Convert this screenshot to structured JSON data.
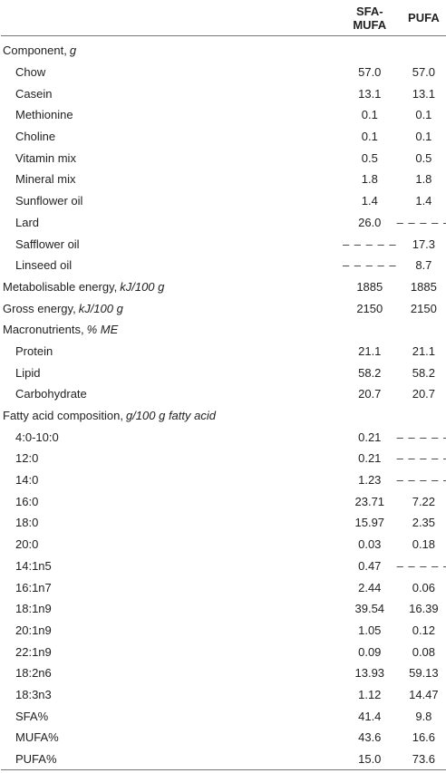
{
  "table": {
    "columns": [
      "SFA-MUFA",
      "PUFA"
    ],
    "sections": [
      {
        "label": "Component,",
        "unit": "g",
        "rows": [
          {
            "label": "Chow",
            "values": [
              "57.0",
              "57.0"
            ]
          },
          {
            "label": "Casein",
            "values": [
              "13.1",
              "13.1"
            ]
          },
          {
            "label": "Methionine",
            "values": [
              "0.1",
              "0.1"
            ]
          },
          {
            "label": "Choline",
            "values": [
              "0.1",
              "0.1"
            ]
          },
          {
            "label": "Vitamin mix",
            "values": [
              "0.5",
              "0.5"
            ]
          },
          {
            "label": "Mineral mix",
            "values": [
              "1.8",
              "1.8"
            ]
          },
          {
            "label": "Sunflower oil",
            "values": [
              "1.4",
              "1.4"
            ]
          },
          {
            "label": "Lard",
            "values": [
              "26.0",
              "– – – – –"
            ]
          },
          {
            "label": "Safflower oil",
            "values": [
              "– – – – –",
              "17.3"
            ]
          },
          {
            "label": "Linseed oil",
            "values": [
              "– – – – –",
              "8.7"
            ]
          }
        ]
      },
      {
        "label": "Metabolisable energy,",
        "unit": "kJ/100 g",
        "values": [
          "1885",
          "1885"
        ]
      },
      {
        "label": "Gross energy,",
        "unit": "kJ/100 g",
        "values": [
          "2150",
          "2150"
        ]
      },
      {
        "label": "Macronutrients,",
        "unit": "% ME",
        "rows": [
          {
            "label": "Protein",
            "values": [
              "21.1",
              "21.1"
            ]
          },
          {
            "label": "Lipid",
            "values": [
              "58.2",
              "58.2"
            ]
          },
          {
            "label": "Carbohydrate",
            "values": [
              "20.7",
              "20.7"
            ]
          }
        ]
      },
      {
        "label": "Fatty acid composition,",
        "unit": "g/100 g fatty acid",
        "rows": [
          {
            "label": "4:0-10:0",
            "values": [
              "0.21",
              "– – – – –"
            ]
          },
          {
            "label": "12:0",
            "values": [
              "0.21",
              "– – – – –"
            ]
          },
          {
            "label": "14:0",
            "values": [
              "1.23",
              "– – – – –"
            ]
          },
          {
            "label": "16:0",
            "values": [
              "23.71",
              "7.22"
            ]
          },
          {
            "label": "18:0",
            "values": [
              "15.97",
              "2.35"
            ]
          },
          {
            "label": "20:0",
            "values": [
              "0.03",
              "0.18"
            ]
          },
          {
            "label": "14:1n5",
            "values": [
              "0.47",
              "– – – – –"
            ]
          },
          {
            "label": "16:1n7",
            "values": [
              "2.44",
              "0.06"
            ]
          },
          {
            "label": "18:1n9",
            "values": [
              "39.54",
              "16.39"
            ]
          },
          {
            "label": "20:1n9",
            "values": [
              "1.05",
              "0.12"
            ]
          },
          {
            "label": "22:1n9",
            "values": [
              "0.09",
              "0.08"
            ]
          },
          {
            "label": "18:2n6",
            "values": [
              "13.93",
              "59.13"
            ]
          },
          {
            "label": "18:3n3",
            "values": [
              "1.12",
              "14.47"
            ]
          },
          {
            "label": "SFA%",
            "values": [
              "41.4",
              "9.8"
            ]
          },
          {
            "label": "MUFA%",
            "values": [
              "43.6",
              "16.6"
            ]
          },
          {
            "label": "PUFA%",
            "values": [
              "15.0",
              "73.6"
            ]
          }
        ]
      }
    ]
  }
}
